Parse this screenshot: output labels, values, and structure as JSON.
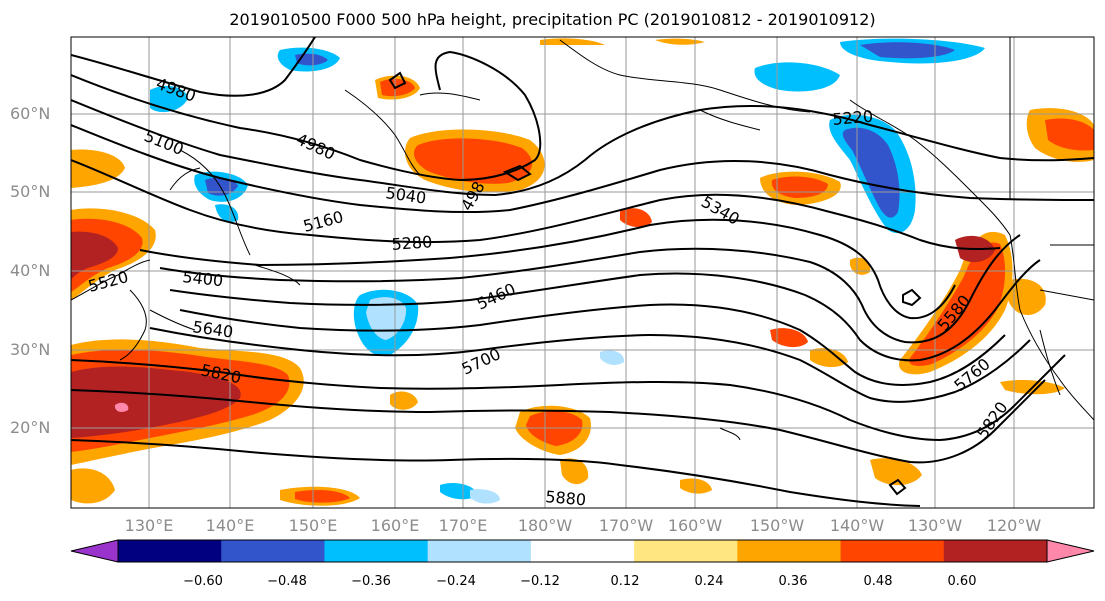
{
  "title": "2019010500 F000 500 hPa height, precipitation PC (2019010812 - 2019010912)",
  "lat_labels": [
    "60°N",
    "50°N",
    "40°N",
    "30°N",
    "20°N"
  ],
  "lon_labels": [
    "130°E",
    "140°E",
    "150°E",
    "160°E",
    "170°E",
    "180°W",
    "170°W",
    "160°W",
    "150°W",
    "140°W",
    "130°W",
    "120°W"
  ],
  "contour_labels": [
    "4980",
    "5100",
    "4980",
    "5040",
    "498",
    "5160",
    "5280",
    "5340",
    "5220",
    "5400",
    "5520",
    "5460",
    "5640",
    "5700",
    "5820",
    "5580",
    "5760",
    "5820",
    "5880"
  ],
  "colorbar": {
    "ticks": [
      "−0.60",
      "−0.48",
      "−0.36",
      "−0.24",
      "−0.12",
      "0.12",
      "0.24",
      "0.36",
      "0.48",
      "0.60"
    ],
    "colors": [
      "#9933cc",
      "#000080",
      "#3355cc",
      "#00bfff",
      "#b0e2ff",
      "#ffffff",
      "#ffe680",
      "#ffa500",
      "#ff4500",
      "#b22222",
      "#ff88aa"
    ]
  }
}
